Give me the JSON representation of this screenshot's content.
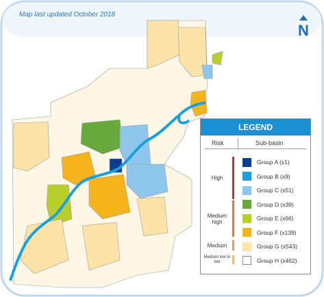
{
  "note": "Map last updated October 2018",
  "north": "N",
  "legend": {
    "title": "LEGEND",
    "risk_header": "Risk",
    "group_header": "Sub-basin",
    "risks": [
      {
        "label": "High",
        "color": "#d7282f"
      },
      {
        "label": "Medium high",
        "color": "#e8772a"
      },
      {
        "label": "Medium",
        "color": "#ee9a3a"
      },
      {
        "label": "Medium low to low",
        "color": "#f3c623"
      }
    ],
    "groups": [
      {
        "label": "Group A (x1)",
        "color": "#0b3e8e"
      },
      {
        "label": "Group B (x9)",
        "color": "#19a0e0"
      },
      {
        "label": "Group C (x51)",
        "color": "#8fc6ec"
      },
      {
        "label": "Group D (x39)",
        "color": "#68a93b"
      },
      {
        "label": "Group E (x66)",
        "color": "#b8cf2b"
      },
      {
        "label": "Group F (x139)",
        "color": "#f5b31c"
      },
      {
        "label": "Group G (x543)",
        "color": "#fde3a8"
      },
      {
        "label": "Group H (x462)",
        "color": "#ffffff"
      }
    ]
  }
}
